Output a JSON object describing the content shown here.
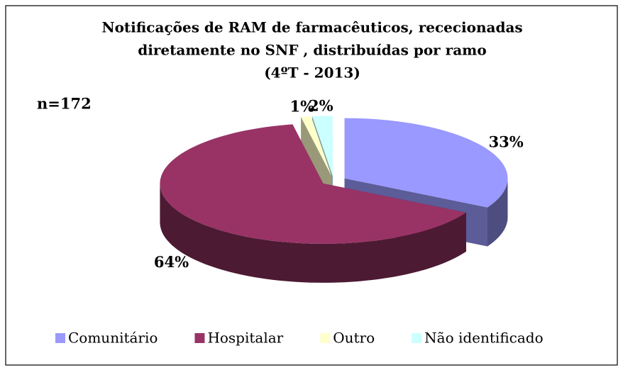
{
  "chart_data": {
    "type": "pie",
    "title": [
      "Notificações de RAM de farmacêuticos, rececionadas",
      "diretamente no SNF , distribuídas por ramo",
      "(4ºT - 2013)"
    ],
    "annotation": "n=172",
    "categories": [
      "Comunitário",
      "Hospitalar",
      "Outro",
      "Não identificado"
    ],
    "values": [
      33,
      64,
      1,
      2
    ],
    "value_labels": [
      "33%",
      "64%",
      "1%",
      "2%"
    ],
    "colors": [
      "#9999ff",
      "#993366",
      "#ffffcc",
      "#ccffff"
    ],
    "legend": "bottom"
  }
}
